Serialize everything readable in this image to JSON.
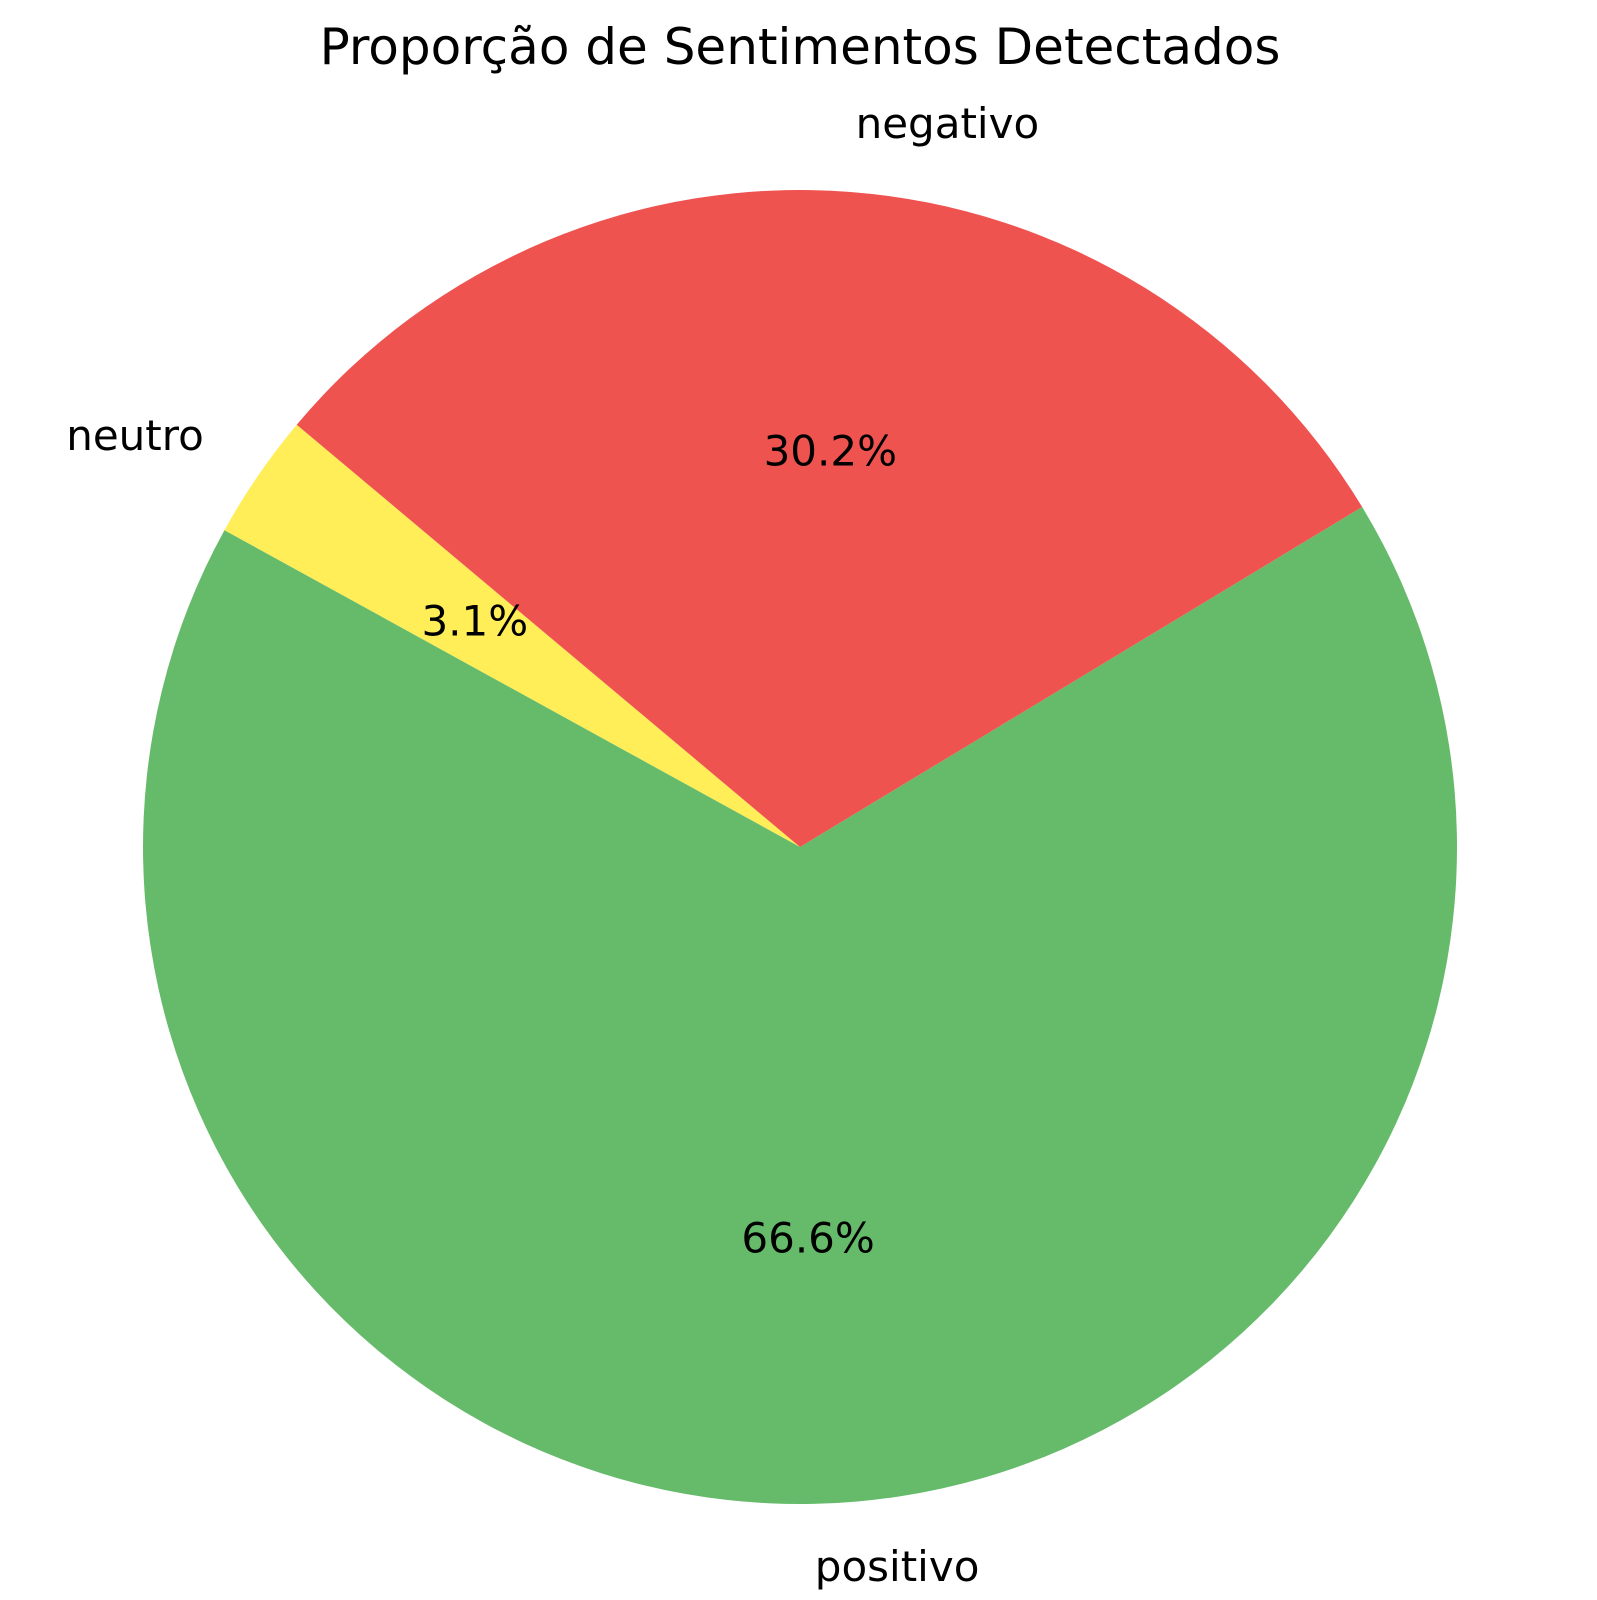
{
  "chart_data": {
    "type": "pie",
    "title": "Proporção de Sentimentos Detectados",
    "start_angle_deg": 140,
    "direction": "counterclockwise",
    "slices": [
      {
        "label": "neutro",
        "value": 3.1,
        "pct_text": "3.1%",
        "color": "#FFEE58"
      },
      {
        "label": "positivo",
        "value": 66.6,
        "pct_text": "66.6%",
        "color": "#66BB6A"
      },
      {
        "label": "negativo",
        "value": 30.2,
        "pct_text": "30.2%",
        "color": "#EF5350"
      }
    ]
  }
}
